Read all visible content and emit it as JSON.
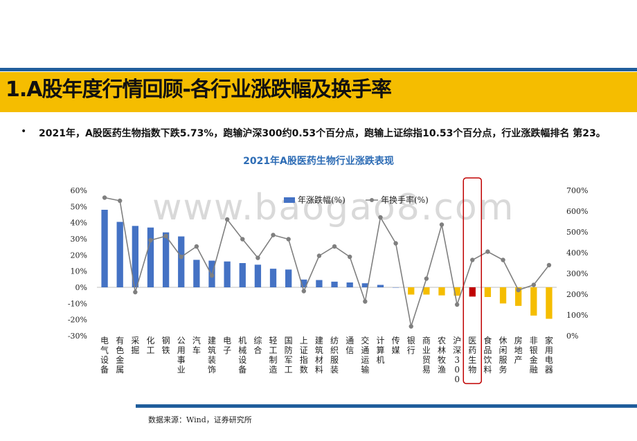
{
  "header": {
    "title": "1.A股年度行情回顾-各行业涨跌幅及换手率",
    "bullet": "2021年，A股医药生物指数下跌5.73%，跑输沪深300约0.53个百分点，跑输上证综指10.53个百分点，行业涨跌幅排名 第23。"
  },
  "watermark": "www.baogao8.com",
  "footer": {
    "source": "数据来源：Wind，证券研究所"
  },
  "colors": {
    "bar_up": "#4472c4",
    "bar_down": "#f5bd00",
    "bar_highlight": "#c00000",
    "line": "#7f7f7f",
    "accent": "#1f5d9c",
    "band": "#f5bd00"
  },
  "chart_data": {
    "type": "bar",
    "title": "2021年A股医药生物行业涨跌表现",
    "highlight_category": "医药生物",
    "categories": [
      "电气设备",
      "有色金属",
      "采掘",
      "化工",
      "钢铁",
      "公用事业",
      "汽车",
      "建筑装饰",
      "电子",
      "机械设备",
      "综合",
      "轻工制造",
      "国防军工",
      "上证指数",
      "建筑材料",
      "纺织服装",
      "通信",
      "交通运输",
      "计算机",
      "传媒",
      "银行",
      "商业贸易",
      "农林牧渔",
      "沪深300",
      "医药生物",
      "食品饮料",
      "休闲服务",
      "房地产",
      "非银金融",
      "家用电器"
    ],
    "series": [
      {
        "name": "年涨跌幅(%)",
        "axis": "left",
        "type": "bar",
        "values": [
          48,
          40.5,
          38,
          37,
          34,
          31.5,
          17,
          16.5,
          16,
          15,
          14,
          11.5,
          11,
          4.8,
          4.5,
          3.5,
          3,
          2.5,
          1.5,
          0,
          -4.5,
          -4.5,
          -5,
          -5.2,
          -5.73,
          -6,
          -10,
          -11.5,
          -17.5,
          -19.5
        ]
      },
      {
        "name": "年换手率(%)",
        "axis": "right",
        "type": "line",
        "values": [
          665,
          650,
          210,
          460,
          480,
          380,
          430,
          290,
          560,
          465,
          375,
          485,
          465,
          215,
          385,
          430,
          380,
          165,
          570,
          445,
          45,
          275,
          535,
          150,
          365,
          405,
          365,
          220,
          245,
          340
        ]
      }
    ],
    "y_left": {
      "min": -30,
      "max": 60,
      "step": 10,
      "format": "percent"
    },
    "y_right": {
      "min": 0,
      "max": 700,
      "step": 100,
      "format": "percent"
    },
    "legend_position": "top-right"
  }
}
